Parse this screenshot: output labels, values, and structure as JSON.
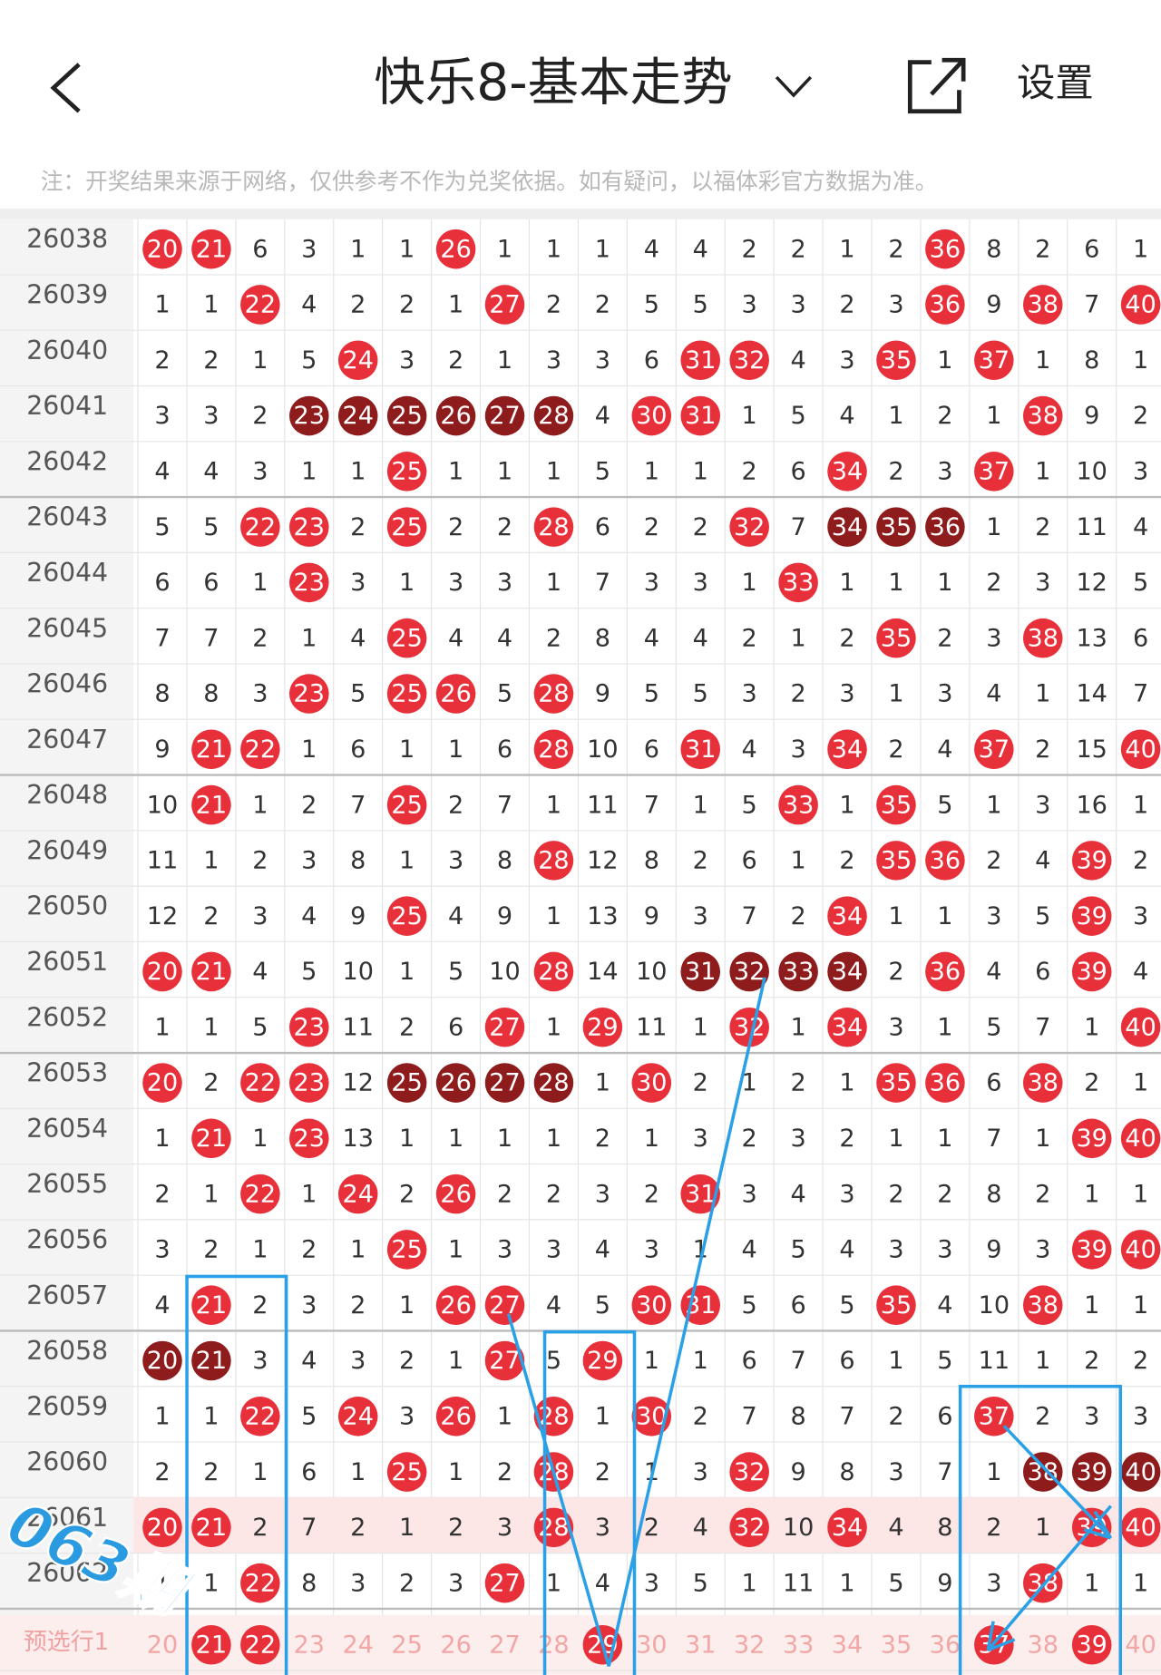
{
  "header": {
    "title": "快乐8-基本走势",
    "settings": "设置"
  },
  "note": "注：开奖结果来源于网络，仅供参考不作为兑奖依据。如有疑问，以福体彩官方数据为准。",
  "table": {
    "rows": [
      {
        "issue": "26038",
        "cells": [
          20,
          21,
          6,
          3,
          1,
          1,
          26,
          1,
          1,
          1,
          4,
          4,
          2,
          2,
          1,
          2,
          36,
          8,
          2,
          6,
          1
        ],
        "marks": "rr....r.........r...."
      },
      {
        "issue": "26039",
        "cells": [
          1,
          1,
          22,
          4,
          2,
          2,
          1,
          27,
          2,
          2,
          5,
          5,
          3,
          3,
          2,
          3,
          36,
          9,
          38,
          7,
          40
        ],
        "marks": "..r....r........r.r.r"
      },
      {
        "issue": "26040",
        "cells": [
          2,
          2,
          1,
          5,
          24,
          3,
          2,
          1,
          3,
          3,
          6,
          31,
          32,
          4,
          3,
          35,
          1,
          37,
          1,
          8,
          1
        ],
        "marks": "....r......rr..r.r..."
      },
      {
        "issue": "26041",
        "cells": [
          3,
          3,
          2,
          23,
          24,
          25,
          26,
          27,
          28,
          4,
          30,
          31,
          1,
          5,
          4,
          1,
          2,
          1,
          38,
          9,
          2
        ],
        "marks": "...dddddd.rr......r.."
      },
      {
        "issue": "26042",
        "cells": [
          4,
          4,
          3,
          1,
          1,
          25,
          1,
          1,
          1,
          5,
          1,
          1,
          2,
          6,
          34,
          2,
          3,
          37,
          1,
          10,
          3
        ],
        "marks": ".....r........r..r..."
      },
      {
        "issue": "26043",
        "cells": [
          5,
          5,
          22,
          23,
          2,
          25,
          2,
          2,
          28,
          6,
          2,
          2,
          32,
          7,
          34,
          35,
          36,
          1,
          2,
          11,
          4
        ],
        "marks": "..rr.r..r...r.ddd...."
      },
      {
        "issue": "26044",
        "cells": [
          6,
          6,
          1,
          23,
          3,
          1,
          3,
          3,
          1,
          7,
          3,
          3,
          1,
          33,
          1,
          1,
          1,
          2,
          3,
          12,
          5
        ],
        "marks": "...r.........r......."
      },
      {
        "issue": "26045",
        "cells": [
          7,
          7,
          2,
          1,
          4,
          25,
          4,
          4,
          2,
          8,
          4,
          4,
          2,
          1,
          2,
          35,
          2,
          3,
          38,
          13,
          6
        ],
        "marks": ".....r.........r..r.."
      },
      {
        "issue": "26046",
        "cells": [
          8,
          8,
          3,
          23,
          5,
          25,
          26,
          5,
          28,
          9,
          5,
          5,
          3,
          2,
          3,
          1,
          3,
          4,
          1,
          14,
          7
        ],
        "marks": "...r.rr.r............"
      },
      {
        "issue": "26047",
        "cells": [
          9,
          21,
          22,
          1,
          6,
          1,
          1,
          6,
          28,
          10,
          6,
          31,
          4,
          3,
          34,
          2,
          4,
          37,
          2,
          15,
          40
        ],
        "marks": ".rr.....r..r..r..r..r"
      },
      {
        "issue": "26048",
        "cells": [
          10,
          21,
          1,
          2,
          7,
          25,
          2,
          7,
          1,
          11,
          7,
          1,
          5,
          33,
          1,
          35,
          5,
          1,
          3,
          16,
          1
        ],
        "marks": ".r...r.......r.r....."
      },
      {
        "issue": "26049",
        "cells": [
          11,
          1,
          2,
          3,
          8,
          1,
          3,
          8,
          28,
          12,
          8,
          2,
          6,
          1,
          2,
          35,
          36,
          2,
          4,
          39,
          2
        ],
        "marks": "........r......rr..r."
      },
      {
        "issue": "26050",
        "cells": [
          12,
          2,
          3,
          4,
          9,
          25,
          4,
          9,
          1,
          13,
          9,
          3,
          7,
          2,
          34,
          1,
          1,
          3,
          5,
          39,
          3
        ],
        "marks": ".....r........r....r."
      },
      {
        "issue": "26051",
        "cells": [
          20,
          21,
          4,
          5,
          10,
          1,
          5,
          10,
          28,
          14,
          10,
          31,
          32,
          33,
          34,
          2,
          36,
          4,
          6,
          39,
          4
        ],
        "marks": "rr......r..dddd.r..r."
      },
      {
        "issue": "26052",
        "cells": [
          1,
          1,
          5,
          23,
          11,
          2,
          6,
          27,
          1,
          29,
          11,
          1,
          32,
          1,
          34,
          3,
          1,
          5,
          7,
          1,
          40
        ],
        "marks": "...r...r.r..r.r.....r"
      },
      {
        "issue": "26053",
        "cells": [
          20,
          2,
          22,
          23,
          12,
          25,
          26,
          27,
          28,
          1,
          30,
          2,
          1,
          2,
          1,
          35,
          36,
          6,
          38,
          2,
          1
        ],
        "marks": "r.rr.dddd.r....rr.r.."
      },
      {
        "issue": "26054",
        "cells": [
          1,
          21,
          1,
          23,
          13,
          1,
          1,
          1,
          1,
          2,
          1,
          3,
          2,
          3,
          2,
          1,
          1,
          7,
          1,
          39,
          40
        ],
        "marks": ".r.r...............rr"
      },
      {
        "issue": "26055",
        "cells": [
          2,
          1,
          22,
          1,
          24,
          2,
          26,
          2,
          2,
          3,
          2,
          31,
          3,
          4,
          3,
          2,
          2,
          8,
          2,
          1,
          1
        ],
        "marks": "..r.r.r....r........."
      },
      {
        "issue": "26056",
        "cells": [
          3,
          2,
          1,
          2,
          1,
          25,
          1,
          3,
          3,
          4,
          3,
          1,
          4,
          5,
          4,
          3,
          3,
          9,
          3,
          39,
          40
        ],
        "marks": ".....r.............rr"
      },
      {
        "issue": "26057",
        "cells": [
          4,
          21,
          2,
          3,
          2,
          1,
          26,
          27,
          4,
          5,
          30,
          31,
          5,
          6,
          5,
          35,
          4,
          10,
          38,
          1,
          1
        ],
        "marks": ".r....rr..rr...r..r.."
      },
      {
        "issue": "26058",
        "cells": [
          20,
          21,
          3,
          4,
          3,
          2,
          1,
          27,
          5,
          29,
          1,
          1,
          6,
          7,
          6,
          1,
          5,
          11,
          1,
          2,
          2
        ],
        "marks": "dd.....r.r..........."
      },
      {
        "issue": "26059",
        "cells": [
          1,
          1,
          22,
          5,
          24,
          3,
          26,
          1,
          28,
          1,
          30,
          2,
          7,
          8,
          7,
          2,
          6,
          37,
          2,
          3,
          3
        ],
        "marks": "..r.r.r.r.r......r..."
      },
      {
        "issue": "26060",
        "cells": [
          2,
          2,
          1,
          6,
          1,
          25,
          1,
          2,
          28,
          2,
          1,
          3,
          32,
          9,
          8,
          3,
          7,
          1,
          38,
          39,
          40
        ],
        "marks": ".....r..r...r.....ddd"
      },
      {
        "issue": "26061",
        "cells": [
          20,
          21,
          2,
          7,
          2,
          1,
          2,
          3,
          28,
          3,
          2,
          4,
          32,
          10,
          34,
          4,
          8,
          2,
          1,
          39,
          40
        ],
        "marks": "rr......r...r.r....rr",
        "highlighted": true
      },
      {
        "issue": "26062",
        "cells": [
          1,
          1,
          22,
          8,
          3,
          2,
          3,
          27,
          1,
          4,
          3,
          5,
          1,
          11,
          1,
          5,
          9,
          3,
          38,
          1,
          1
        ],
        "marks": "..r....r..........r.."
      }
    ],
    "preselect": {
      "label": "预选行1",
      "cells": [
        20,
        21,
        22,
        23,
        24,
        25,
        26,
        27,
        28,
        29,
        30,
        31,
        32,
        33,
        34,
        35,
        36,
        37,
        38,
        39,
        40
      ],
      "marks": ".rr......r.......r.r."
    }
  },
  "annotation": "063期"
}
